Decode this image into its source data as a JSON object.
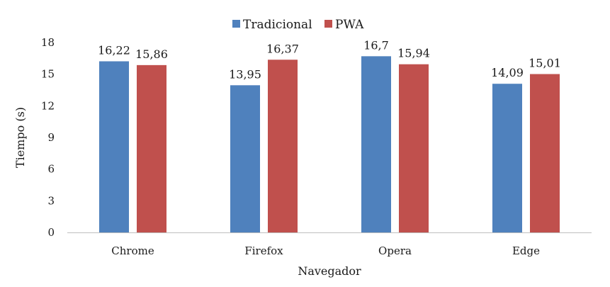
{
  "chart_data": {
    "type": "bar",
    "title": "",
    "xlabel": "Navegador",
    "ylabel": "Tiempo (s)",
    "categories": [
      "Chrome",
      "Firefox",
      "Opera",
      "Edge"
    ],
    "series": [
      {
        "name": "Tradicional",
        "color": "#4f81bd",
        "values": [
          16.22,
          13.95,
          16.7,
          14.09
        ],
        "labels": [
          "16,22",
          "13,95",
          "16,7",
          "14,09"
        ]
      },
      {
        "name": "PWA",
        "color": "#c0504d",
        "values": [
          15.86,
          16.37,
          15.94,
          15.01
        ],
        "labels": [
          "15,86",
          "16,37",
          "15,94",
          "15,01"
        ]
      }
    ],
    "ylim": [
      0,
      18
    ],
    "yticks": [
      0,
      3,
      6,
      9,
      12,
      15,
      18
    ],
    "grid": false,
    "legend": "top-center"
  }
}
